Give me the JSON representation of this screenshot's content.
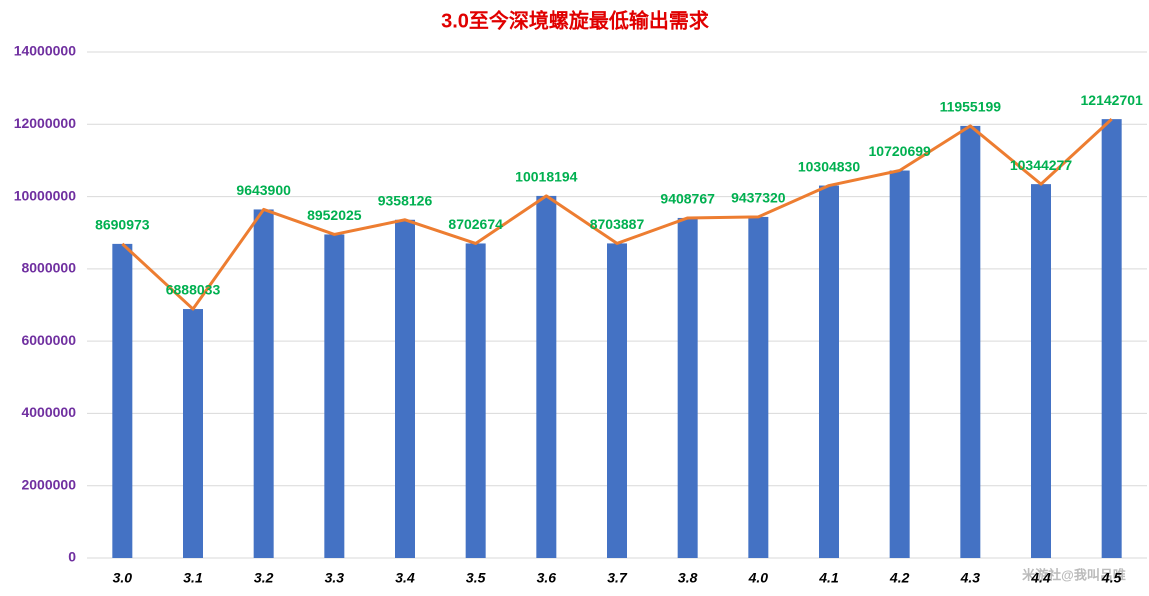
{
  "chart_data": {
    "type": "bar",
    "title": "3.0至今深境螺旋最低输出需求",
    "categories": [
      "3.0",
      "3.1",
      "3.2",
      "3.3",
      "3.4",
      "3.5",
      "3.6",
      "3.7",
      "3.8",
      "4.0",
      "4.1",
      "4.2",
      "4.3",
      "4.4",
      "4.5"
    ],
    "values": [
      8690973,
      6888033,
      9643900,
      8952025,
      9358126,
      8702674,
      10018194,
      8703887,
      9408767,
      9437320,
      10304830,
      10720699,
      11955199,
      10344277,
      12142701
    ],
    "color": "#4472c4",
    "line_color": "#ed7d31",
    "ylim": [
      0,
      14000000
    ],
    "yticks": [
      0,
      2000000,
      4000000,
      6000000,
      8000000,
      10000000,
      12000000,
      14000000
    ],
    "grid": true,
    "watermark": "米游社@我叫吕唯"
  }
}
